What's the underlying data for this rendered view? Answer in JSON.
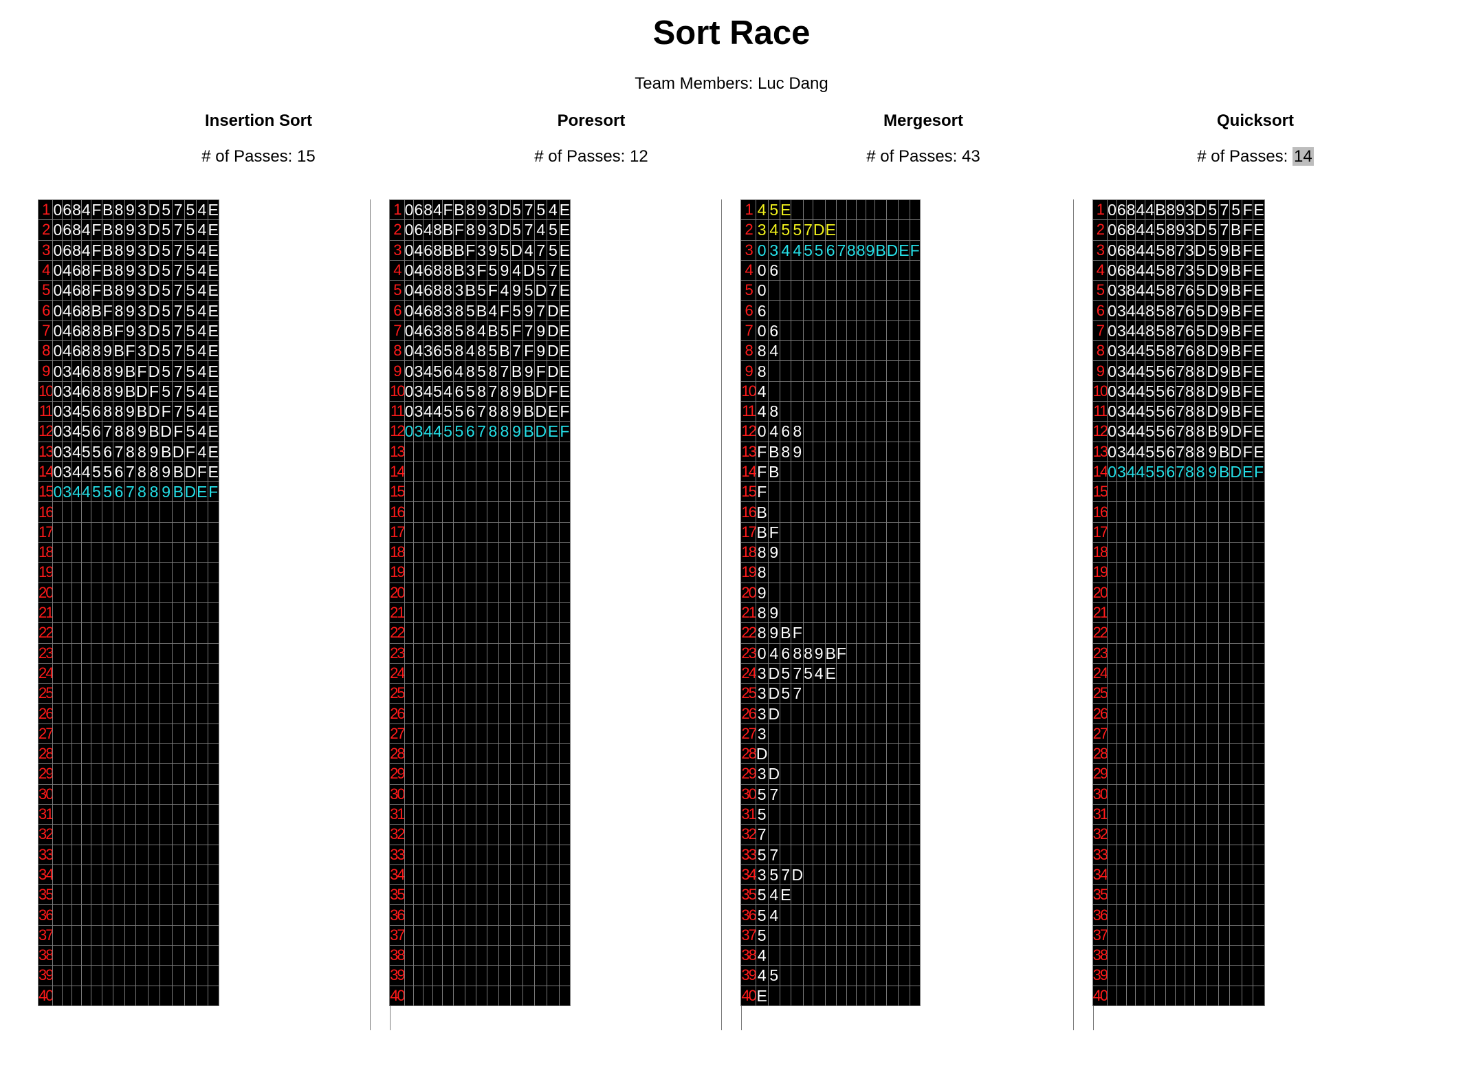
{
  "page": {
    "title": "Sort Race",
    "team": "Team Members: Luc Dang"
  },
  "passes_label": "# of Passes: ",
  "rows": 40,
  "columns": [
    {
      "name": "Insertion Sort",
      "passes": "15",
      "highlight_passes": false,
      "color_by_row": {
        "15": "cyan"
      },
      "data": [
        "0684FB893D5754E",
        "0684FB893D5754E",
        "0684FB893D5754E",
        "0468FB893D5754E",
        "0468FB893D5754E",
        "0468BF893D5754E",
        "04688BF93D5754E",
        "046889BF3D5754E",
        "0346889BFD5754E",
        "0346889BDF5754E",
        "03456889BDF754E",
        "03456788 9BDF54E",
        "034556788 9BDF4E",
        "0344556788 9BDFE",
        "03445567889BDEF"
      ]
    },
    {
      "name": "Poresort",
      "passes": "12",
      "highlight_passes": false,
      "color_by_row": {
        "12": "cyan"
      },
      "data": [
        "0684FB893D5754E",
        "0648BF893D5745E",
        "0468BBF395D475E",
        "04688B3F594D57E",
        "046883B5F495D7E",
        "046838 5B4F597DE",
        "0463858 4B5F79DE",
        "04365848 5B7F9DE",
        "034564858 7B9FDE",
        "034546 5878 9BDFE",
        "034455678 89BDEF",
        "03445567889BDEF"
      ]
    },
    {
      "name": "Mergesort",
      "passes": "43",
      "highlight_passes": false,
      "color_by_row": {
        "1": "yellow",
        "2": "yellow",
        "3": "cyan"
      },
      "data": [
        "45E",
        "34557DE",
        "03445567889BDEF",
        "06",
        "0",
        "6",
        "06",
        "84",
        "8",
        "4",
        "48",
        "0468",
        "FB89",
        "FB",
        "F",
        "B",
        "BF",
        "89",
        "8",
        "9",
        "89",
        "89BF",
        "046889BF",
        "3D5754E",
        "3D57",
        "3D",
        "3",
        "D",
        "3D",
        "57",
        "5",
        "7",
        "57",
        "357D",
        "54E",
        "54",
        "5",
        "4",
        "45",
        "E"
      ]
    },
    {
      "name": "Quicksort",
      "passes": "14",
      "highlight_passes": true,
      "color_by_row": {
        "14": "cyan"
      },
      "data": [
        "06844B893D575FE",
        "06844589 3D57BFE",
        "068445873D59BFE",
        "068445873 5D9BFE",
        "038445876 5D9BFE",
        "034485876 5D9BFE",
        "034485876 5D9BFE",
        "034455876 8D9BFE",
        "034455678 8D9BFE",
        "034455678 8D9BFE",
        "034455678 8D9BFE",
        "034455678 8B9DFE",
        "03445567889BDFE",
        "03445567889BDEF"
      ]
    }
  ]
}
